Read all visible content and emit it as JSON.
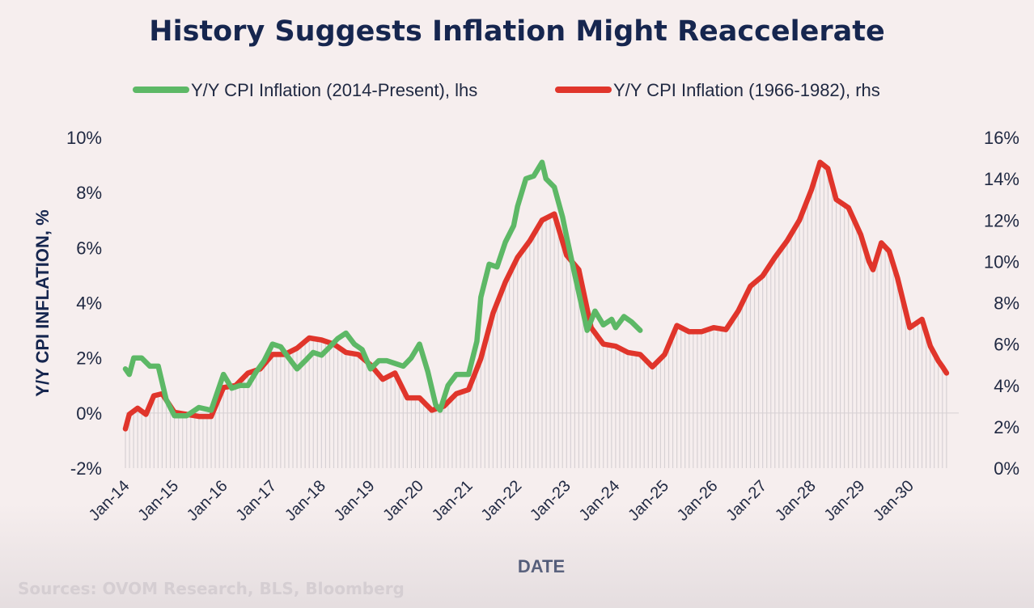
{
  "chart_data": {
    "type": "line",
    "title": "History Suggests Inflation Might Reaccelerate",
    "xlabel": "DATE",
    "ylabel": "Y/Y CPI INFLATION, %",
    "ylim_left": [
      -2,
      10
    ],
    "ylim_right": [
      0,
      16
    ],
    "left_tick_labels": [
      "-2%",
      "0%",
      "2%",
      "4%",
      "6%",
      "8%",
      "10%"
    ],
    "right_tick_labels": [
      "0%",
      "2%",
      "4%",
      "6%",
      "8%",
      "10%",
      "12%",
      "14%",
      "16%"
    ],
    "x_tick_labels": [
      "Jan-14",
      "Jan-15",
      "Jan-16",
      "Jan-17",
      "Jan-18",
      "Jan-19",
      "Jan-20",
      "Jan-21",
      "Jan-22",
      "Jan-23",
      "Jan-24",
      "Jan-25",
      "Jan-26",
      "Jan-27",
      "Jan-28",
      "Jan-29",
      "Jan-30"
    ],
    "legend_position": "top",
    "grid": false,
    "series": [
      {
        "name": "Y/Y CPI Inflation (2014-Present), lhs",
        "axis": "left",
        "color": "#5db866",
        "x": [
          2014.0,
          2014.08,
          2014.17,
          2014.33,
          2014.5,
          2014.67,
          2014.83,
          2015.0,
          2015.25,
          2015.5,
          2015.75,
          2016.0,
          2016.17,
          2016.33,
          2016.5,
          2016.67,
          2016.83,
          2017.0,
          2017.17,
          2017.33,
          2017.5,
          2017.67,
          2017.83,
          2018.0,
          2018.17,
          2018.33,
          2018.5,
          2018.67,
          2018.83,
          2019.0,
          2019.17,
          2019.33,
          2019.5,
          2019.67,
          2019.83,
          2020.0,
          2020.17,
          2020.33,
          2020.42,
          2020.58,
          2020.75,
          2021.0,
          2021.17,
          2021.25,
          2021.42,
          2021.58,
          2021.75,
          2021.92,
          2022.0,
          2022.17,
          2022.33,
          2022.5,
          2022.58,
          2022.75,
          2022.92,
          2023.0,
          2023.17,
          2023.42,
          2023.58,
          2023.75,
          2023.92,
          2024.0,
          2024.17,
          2024.33,
          2024.5
        ],
        "y": [
          1.6,
          1.4,
          2.0,
          2.0,
          1.7,
          1.7,
          0.5,
          -0.1,
          -0.1,
          0.2,
          0.1,
          1.4,
          0.9,
          1.0,
          1.0,
          1.5,
          1.9,
          2.5,
          2.4,
          2.0,
          1.6,
          1.9,
          2.2,
          2.1,
          2.4,
          2.7,
          2.9,
          2.5,
          2.3,
          1.6,
          1.9,
          1.9,
          1.8,
          1.7,
          2.0,
          2.5,
          1.5,
          0.3,
          0.1,
          1.0,
          1.4,
          1.4,
          2.6,
          4.2,
          5.4,
          5.3,
          6.2,
          6.8,
          7.5,
          8.5,
          8.6,
          9.1,
          8.5,
          8.2,
          7.1,
          6.4,
          5.0,
          3.0,
          3.7,
          3.2,
          3.4,
          3.1,
          3.5,
          3.3,
          3.0
        ]
      },
      {
        "name": "Y/Y CPI Inflation (1966-1982), rhs",
        "axis": "right",
        "color": "#e0352b",
        "x": [
          2014.0,
          2014.08,
          2014.25,
          2014.42,
          2014.58,
          2014.75,
          2015.0,
          2015.25,
          2015.5,
          2015.75,
          2016.0,
          2016.25,
          2016.5,
          2016.75,
          2017.0,
          2017.25,
          2017.5,
          2017.75,
          2018.0,
          2018.25,
          2018.5,
          2018.75,
          2019.0,
          2019.25,
          2019.5,
          2019.75,
          2020.0,
          2020.25,
          2020.5,
          2020.75,
          2021.0,
          2021.25,
          2021.5,
          2021.75,
          2022.0,
          2022.25,
          2022.5,
          2022.75,
          2023.0,
          2023.25,
          2023.5,
          2023.75,
          2024.0,
          2024.25,
          2024.5,
          2024.75,
          2025.0,
          2025.25,
          2025.5,
          2025.75,
          2026.0,
          2026.25,
          2026.5,
          2026.75,
          2027.0,
          2027.25,
          2027.5,
          2027.75,
          2028.0,
          2028.17,
          2028.33,
          2028.5,
          2028.75,
          2029.0,
          2029.17,
          2029.25,
          2029.42,
          2029.58,
          2029.75,
          2030.0,
          2030.25,
          2030.42,
          2030.58,
          2030.67,
          2030.75
        ],
        "y": [
          1.9,
          2.6,
          2.9,
          2.6,
          3.5,
          3.6,
          2.7,
          2.6,
          2.5,
          2.5,
          3.9,
          4.0,
          4.6,
          4.8,
          5.5,
          5.5,
          5.8,
          6.3,
          6.2,
          6.0,
          5.6,
          5.5,
          5.0,
          4.3,
          4.6,
          3.4,
          3.4,
          2.8,
          3.0,
          3.6,
          3.8,
          5.3,
          7.5,
          9.0,
          10.2,
          11.0,
          12.0,
          12.3,
          10.3,
          9.6,
          6.8,
          6.0,
          5.9,
          5.6,
          5.5,
          4.9,
          5.5,
          6.9,
          6.6,
          6.6,
          6.8,
          6.7,
          7.6,
          8.8,
          9.3,
          10.2,
          11.0,
          12.0,
          13.5,
          14.8,
          14.5,
          13.0,
          12.6,
          11.3,
          10.0,
          9.6,
          10.9,
          10.5,
          9.2,
          6.8,
          7.2,
          5.9,
          5.2,
          4.9,
          4.6
        ]
      }
    ]
  },
  "footer": {
    "sources": "Sources: OVOM Research, BLS, Bloomberg"
  }
}
